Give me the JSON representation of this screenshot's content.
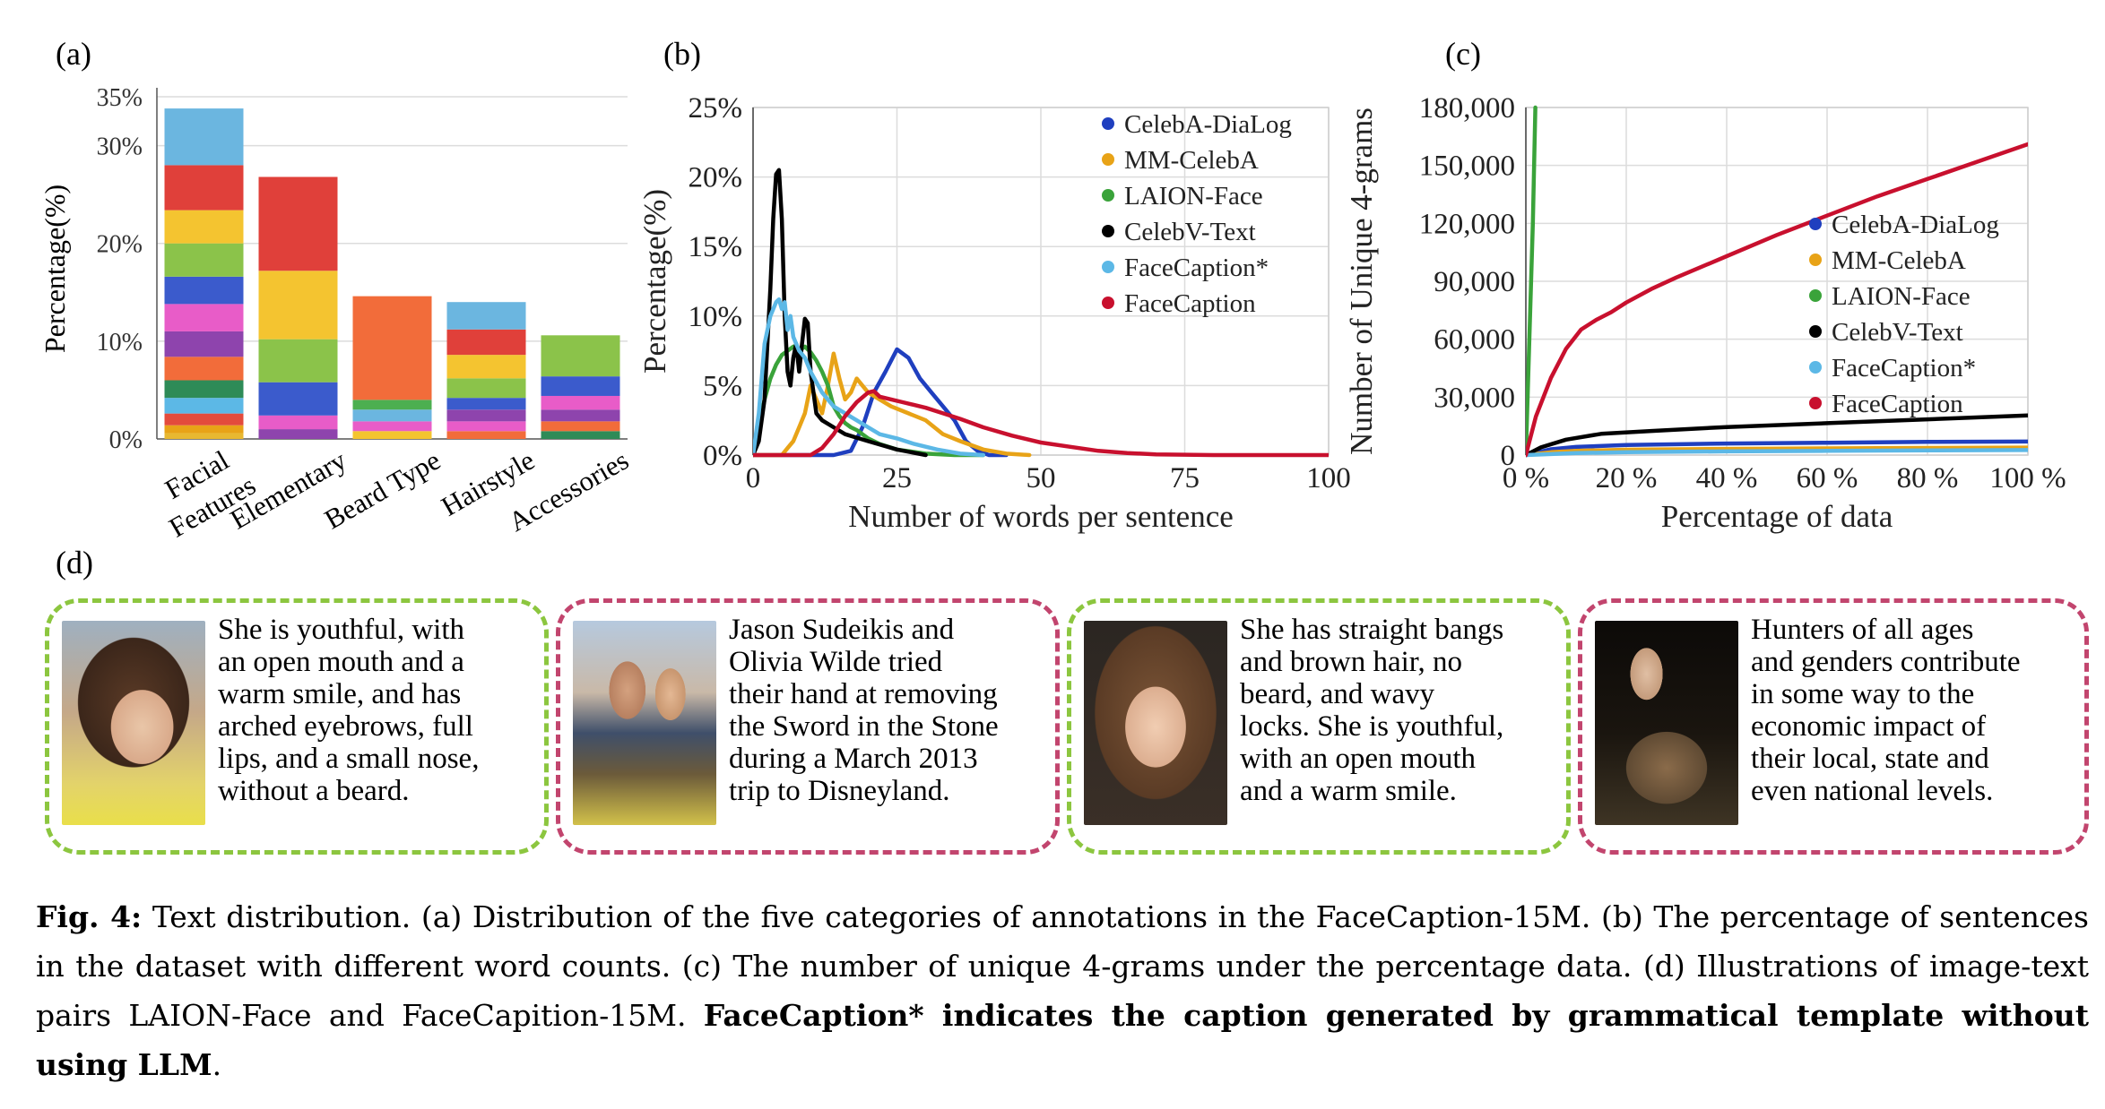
{
  "panel_labels": {
    "a": "(a)",
    "b": "(b)",
    "c": "(c)",
    "d": "(d)"
  },
  "colors": {
    "celeba_dialog": "#1f3fbf",
    "mm_celeba": "#e8a317",
    "laion_face": "#3aa33a",
    "celebv_text": "#000000",
    "facecaption_star": "#5cb8e6",
    "facecaption": "#c8102e",
    "card_green": "#8cc63f",
    "card_pink": "#c2456e"
  },
  "chart_data": [
    {
      "type": "bar",
      "stacked": true,
      "panel": "(a)",
      "ylabel": "Percentage(%)",
      "ylim": [
        0,
        35
      ],
      "yticks": [
        "0%",
        "10%",
        "20%",
        "30%",
        "35%"
      ],
      "categories": [
        "Facial Features",
        "Elementary",
        "Beard Type",
        "Hairstyle",
        "Accessories"
      ],
      "stacks": [
        {
          "category": "Facial Features",
          "segments": [
            {
              "value": 0.6,
              "color": "#e8b830"
            },
            {
              "value": 0.8,
              "color": "#e8a317"
            },
            {
              "value": 1.2,
              "color": "#e34b3c"
            },
            {
              "value": 1.6,
              "color": "#5cb8e6"
            },
            {
              "value": 1.8,
              "color": "#2e8b57"
            },
            {
              "value": 2.4,
              "color": "#f26c3a"
            },
            {
              "value": 2.6,
              "color": "#8e44ad"
            },
            {
              "value": 2.8,
              "color": "#e85cc8"
            },
            {
              "value": 2.8,
              "color": "#3b5bcc"
            },
            {
              "value": 3.4,
              "color": "#8bc34a"
            },
            {
              "value": 3.4,
              "color": "#f4c430"
            },
            {
              "value": 4.6,
              "color": "#e0403a"
            },
            {
              "value": 5.8,
              "color": "#6bb6e0"
            }
          ]
        },
        {
          "category": "Elementary",
          "segments": [
            {
              "value": 1.0,
              "color": "#8e44ad"
            },
            {
              "value": 1.4,
              "color": "#e85cc8"
            },
            {
              "value": 3.4,
              "color": "#3b5bcc"
            },
            {
              "value": 4.4,
              "color": "#8bc34a"
            },
            {
              "value": 7.0,
              "color": "#f4c430"
            },
            {
              "value": 9.6,
              "color": "#e0403a"
            }
          ]
        },
        {
          "category": "Beard Type",
          "segments": [
            {
              "value": 0.8,
              "color": "#f4c430"
            },
            {
              "value": 1.0,
              "color": "#e85cc8"
            },
            {
              "value": 1.2,
              "color": "#6bb6e0"
            },
            {
              "value": 1.0,
              "color": "#4caf50"
            },
            {
              "value": 10.6,
              "color": "#f26c3a"
            }
          ]
        },
        {
          "category": "Hairstyle",
          "segments": [
            {
              "value": 0.8,
              "color": "#f26c3a"
            },
            {
              "value": 1.0,
              "color": "#e85cc8"
            },
            {
              "value": 1.2,
              "color": "#8e44ad"
            },
            {
              "value": 1.2,
              "color": "#3b5bcc"
            },
            {
              "value": 2.0,
              "color": "#8bc34a"
            },
            {
              "value": 2.4,
              "color": "#f4c430"
            },
            {
              "value": 2.6,
              "color": "#e0403a"
            },
            {
              "value": 2.8,
              "color": "#6bb6e0"
            }
          ]
        },
        {
          "category": "Accessories",
          "segments": [
            {
              "value": 0.8,
              "color": "#2e8b57"
            },
            {
              "value": 1.0,
              "color": "#f26c3a"
            },
            {
              "value": 1.2,
              "color": "#8e44ad"
            },
            {
              "value": 1.4,
              "color": "#e85cc8"
            },
            {
              "value": 2.0,
              "color": "#3b5bcc"
            },
            {
              "value": 4.2,
              "color": "#8bc34a"
            }
          ]
        }
      ]
    },
    {
      "type": "line",
      "panel": "(b)",
      "xlabel": "Number of words per sentence",
      "ylabel": "Percentage(%)",
      "xlim": [
        0,
        100
      ],
      "ylim": [
        0,
        25
      ],
      "xticks": [
        "0",
        "25",
        "50",
        "75",
        "100"
      ],
      "yticks": [
        "0%",
        "5%",
        "10%",
        "15%",
        "20%",
        "25%"
      ],
      "legend_position": "top-right",
      "series": [
        {
          "name": "CelebA-DiaLog",
          "key": "celeba_dialog",
          "x": [
            0,
            10,
            14,
            17,
            19,
            21,
            23,
            25,
            27,
            29,
            31,
            33,
            35,
            37,
            39,
            41,
            44
          ],
          "y": [
            0,
            0,
            0,
            0.3,
            2,
            4.5,
            6,
            7.6,
            7,
            5.5,
            4.5,
            3.5,
            2.5,
            1,
            0.3,
            0,
            0
          ]
        },
        {
          "name": "MM-CelebA",
          "key": "mm_celeba",
          "x": [
            0,
            5,
            6,
            7,
            8,
            9,
            10,
            11,
            12,
            13,
            14,
            15,
            16,
            17,
            18,
            19,
            20,
            22,
            24,
            27,
            30,
            33,
            36,
            40,
            44,
            48
          ],
          "y": [
            0,
            0,
            0.5,
            1,
            2,
            3,
            5,
            4,
            3,
            5,
            7.3,
            5.5,
            4,
            4.5,
            5.5,
            5,
            4.5,
            4,
            3.5,
            3,
            2.5,
            1.5,
            1,
            0.4,
            0.1,
            0
          ]
        },
        {
          "name": "LAION-Face",
          "key": "laion_face",
          "x": [
            0,
            1,
            2,
            3,
            4,
            5,
            6,
            7,
            8,
            9,
            10,
            11,
            12,
            13,
            14,
            15,
            16,
            17,
            18,
            20,
            22,
            25,
            30,
            35,
            40
          ],
          "y": [
            0,
            2,
            4,
            5.5,
            6.5,
            7.2,
            7.5,
            7.8,
            7.5,
            7.8,
            7.4,
            6.8,
            6,
            5,
            3.5,
            2.8,
            2.3,
            2,
            1.8,
            1.2,
            0.8,
            0.4,
            0.1,
            0,
            0
          ]
        },
        {
          "name": "CelebV-Text",
          "key": "celebv_text",
          "x": [
            0,
            1,
            2,
            2.5,
            3,
            3.5,
            4,
            4.5,
            5,
            5.5,
            6,
            6.5,
            7,
            7.5,
            8,
            8.5,
            9,
            9.5,
            10,
            11,
            12,
            14,
            16,
            20,
            25,
            30
          ],
          "y": [
            0,
            1,
            4,
            8,
            12,
            17,
            20.2,
            20.5,
            17,
            10,
            6,
            5,
            7,
            8,
            6,
            8,
            9.8,
            9.5,
            6,
            3,
            2.5,
            2,
            1.5,
            1,
            0.4,
            0
          ]
        },
        {
          "name": "FaceCaption*",
          "key": "facecaption_star",
          "x": [
            0,
            1,
            2,
            3,
            4,
            4.5,
            5,
            5.5,
            6,
            6.5,
            7,
            8,
            9,
            10,
            12,
            14,
            16,
            18,
            20,
            22,
            25,
            28,
            32,
            36,
            40
          ],
          "y": [
            0,
            3,
            8,
            10,
            11,
            11.2,
            10.5,
            11,
            9,
            10,
            8.5,
            7.5,
            7,
            6,
            4.5,
            3.5,
            3,
            2.5,
            2,
            1.5,
            1.2,
            0.8,
            0.4,
            0.1,
            0
          ]
        },
        {
          "name": "FaceCaption",
          "key": "facecaption",
          "x": [
            0,
            10,
            12,
            14,
            16,
            18,
            20,
            21,
            22,
            24,
            26,
            28,
            30,
            33,
            36,
            40,
            45,
            50,
            55,
            60,
            65,
            70,
            80,
            90,
            100
          ],
          "y": [
            0,
            0,
            0.5,
            1.5,
            2.8,
            3.8,
            4.5,
            4.6,
            4.2,
            4,
            3.8,
            3.6,
            3.4,
            3,
            2.6,
            2,
            1.4,
            0.9,
            0.6,
            0.3,
            0.15,
            0.05,
            0,
            0,
            0
          ]
        }
      ]
    },
    {
      "type": "line",
      "panel": "(c)",
      "xlabel": "Percentage of data",
      "ylabel": "Number of Unique 4-grams",
      "xlim": [
        0,
        100
      ],
      "ylim": [
        0,
        180000
      ],
      "xticks": [
        "0 %",
        "20 %",
        "40 %",
        "60 %",
        "80 %",
        "100 %"
      ],
      "yticks": [
        "0",
        "30,000",
        "60,000",
        "90,000",
        "120,000",
        "150,000",
        "180,000"
      ],
      "legend_position": "right",
      "series": [
        {
          "name": "CelebA-DiaLog",
          "key": "celeba_dialog",
          "x": [
            0,
            5,
            10,
            20,
            40,
            60,
            80,
            100
          ],
          "y": [
            0,
            3000,
            4200,
            5200,
            6000,
            6400,
            6800,
            7000
          ]
        },
        {
          "name": "MM-CelebA",
          "key": "mm_celeba",
          "x": [
            0,
            5,
            10,
            20,
            40,
            60,
            80,
            100
          ],
          "y": [
            0,
            1500,
            2200,
            2800,
            3200,
            3500,
            3700,
            3900
          ]
        },
        {
          "name": "LAION-Face",
          "key": "laion_face",
          "x": [
            0,
            1.4,
            1.9
          ],
          "y": [
            0,
            120000,
            180000
          ]
        },
        {
          "name": "CelebV-Text",
          "key": "celebv_text",
          "x": [
            0,
            3,
            8,
            15,
            25,
            40,
            60,
            80,
            100
          ],
          "y": [
            0,
            4000,
            8000,
            11000,
            12500,
            14500,
            16500,
            18500,
            20500
          ]
        },
        {
          "name": "FaceCaption*",
          "key": "facecaption_star",
          "x": [
            0,
            10,
            20,
            40,
            60,
            80,
            100
          ],
          "y": [
            0,
            1000,
            1500,
            1900,
            2200,
            2400,
            2600
          ]
        },
        {
          "name": "FaceCaption",
          "key": "facecaption",
          "x": [
            0,
            2,
            5,
            8,
            11,
            14,
            17,
            20,
            25,
            30,
            40,
            50,
            60,
            70,
            80,
            90,
            100
          ],
          "y": [
            0,
            20000,
            40000,
            55000,
            65000,
            70000,
            74000,
            79000,
            86000,
            92000,
            103000,
            114000,
            124000,
            134000,
            143000,
            152000,
            161000
          ]
        }
      ]
    }
  ],
  "cards": [
    {
      "style": "green",
      "caption": "She is youthful, with\nan open mouth and a\nwarm smile, and has\narched eyebrows, full\nlips, and a small nose,\nwithout a beard."
    },
    {
      "style": "pink",
      "caption": "Jason Sudeikis and\nOlivia Wilde tried\ntheir hand at removing\nthe Sword in the Stone\nduring a March 2013\ntrip to Disneyland."
    },
    {
      "style": "green",
      "caption": "She has straight bangs\nand brown hair, no\nbeard, and wavy\nlocks. She is youthful,\nwith an open mouth\nand a warm smile."
    },
    {
      "style": "pink",
      "caption": "Hunters of all ages\nand genders contribute\nin some way to the\neconomic impact of\ntheir local, state and\neven national levels."
    }
  ],
  "figure_caption": {
    "label": "Fig. 4:",
    "text": " Text distribution. (a) Distribution of the five categories of annotations in the FaceCaption-15M. (b) The percentage of sentences in the dataset with different word counts. (c) The number of unique 4-grams under the percentage data. (d) Illustrations of image-text pairs LAION-Face and FaceCapition-15M. ",
    "bold_note": "FaceCaption* indicates the caption generated by grammatical template without using LLM",
    "end": "."
  }
}
